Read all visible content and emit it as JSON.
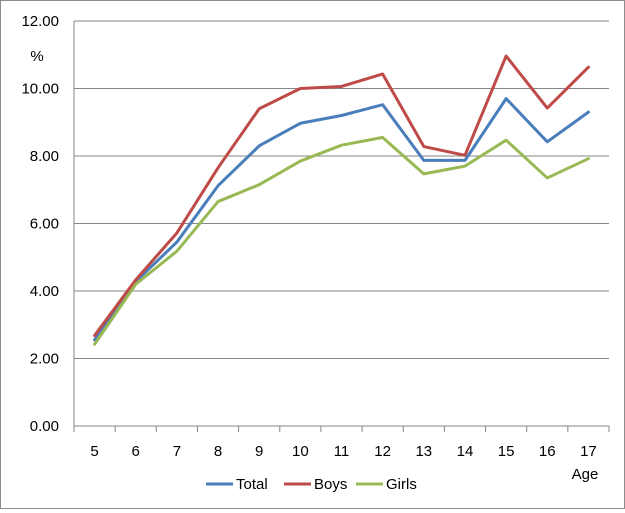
{
  "chart_data": {
    "type": "line",
    "title": "",
    "xlabel": "Age",
    "ylabel": "%",
    "categories": [
      "5",
      "6",
      "7",
      "8",
      "9",
      "10",
      "11",
      "12",
      "13",
      "14",
      "15",
      "16",
      "17"
    ],
    "ylim": [
      0,
      12
    ],
    "y_ticks": [
      "0.00",
      "2.00",
      "4.00",
      "6.00",
      "8.00",
      "10.00",
      "12.00"
    ],
    "grid": true,
    "legend_position": "bottom",
    "series": [
      {
        "name": "Total",
        "color": "#4a7ebb",
        "values": [
          2.55,
          4.28,
          5.45,
          7.12,
          8.3,
          8.97,
          9.2,
          9.52,
          7.87,
          7.87,
          9.7,
          8.42,
          9.3
        ]
      },
      {
        "name": "Boys",
        "color": "#be4b48",
        "values": [
          2.68,
          4.33,
          5.72,
          7.65,
          9.4,
          10.0,
          10.06,
          10.43,
          8.28,
          8.02,
          10.96,
          9.42,
          10.63
        ]
      },
      {
        "name": "Girls",
        "color": "#98b954",
        "values": [
          2.42,
          4.2,
          5.18,
          6.65,
          7.15,
          7.85,
          8.32,
          8.55,
          7.47,
          7.7,
          8.47,
          7.35,
          7.92
        ]
      }
    ]
  }
}
